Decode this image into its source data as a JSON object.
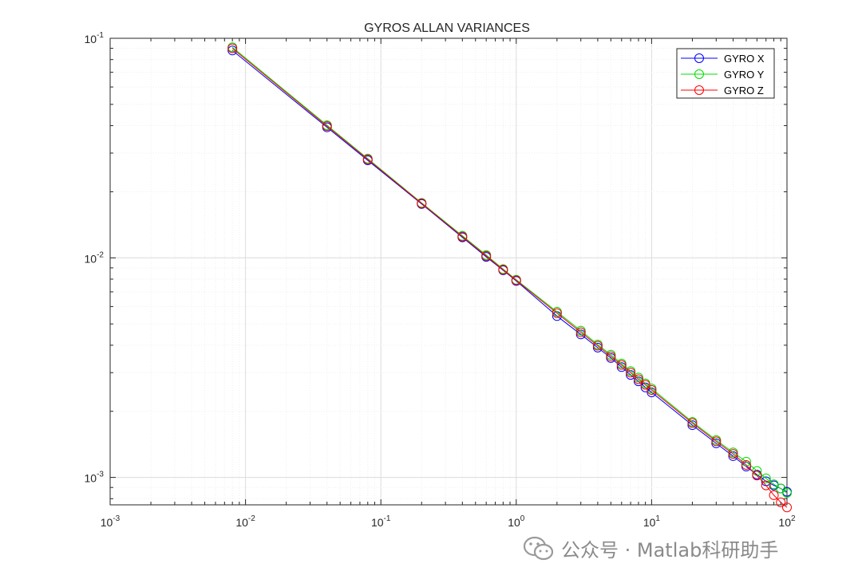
{
  "chart_data": {
    "type": "line",
    "title": "GYROS ALLAN VARIANCES",
    "x_scale": "log",
    "y_scale": "log",
    "xlim": [
      0.001,
      100
    ],
    "ylim": [
      0.00075,
      0.1
    ],
    "grid": true,
    "minor_grid": true,
    "legend_position": "top-right",
    "x_tick_labels": [
      {
        "value": 0.001,
        "base": "10",
        "exp": "-3"
      },
      {
        "value": 0.01,
        "base": "10",
        "exp": "-2"
      },
      {
        "value": 0.1,
        "base": "10",
        "exp": "-1"
      },
      {
        "value": 1,
        "base": "10",
        "exp": "0"
      },
      {
        "value": 10,
        "base": "10",
        "exp": "1"
      },
      {
        "value": 100,
        "base": "10",
        "exp": "2"
      }
    ],
    "y_tick_labels": [
      {
        "value": 0.001,
        "base": "10",
        "exp": "-3"
      },
      {
        "value": 0.01,
        "base": "10",
        "exp": "-2"
      },
      {
        "value": 0.1,
        "base": "10",
        "exp": "-1"
      }
    ],
    "x": [
      0.008,
      0.04,
      0.08,
      0.2,
      0.4,
      0.6,
      0.8,
      1,
      2,
      3,
      4,
      5,
      6,
      7,
      8,
      9,
      10,
      20,
      30,
      40,
      50,
      60,
      70,
      80,
      90,
      100
    ],
    "series": [
      {
        "name": "GYRO X",
        "color": "#0000ff",
        "values": [
          0.088,
          0.0393,
          0.0278,
          0.0176,
          0.0124,
          0.0101,
          0.00878,
          0.00785,
          0.00543,
          0.00448,
          0.0039,
          0.0035,
          0.00318,
          0.00293,
          0.00274,
          0.00257,
          0.00244,
          0.00173,
          0.00143,
          0.00125,
          0.00112,
          0.00103,
          0.00096,
          0.00092,
          0.00089,
          0.00086
        ]
      },
      {
        "name": "GYRO Y",
        "color": "#00dd00",
        "values": [
          0.091,
          0.0402,
          0.0283,
          0.0178,
          0.0126,
          0.0103,
          0.00889,
          0.00795,
          0.00568,
          0.00466,
          0.00403,
          0.00362,
          0.0033,
          0.00305,
          0.00285,
          0.00268,
          0.00254,
          0.00179,
          0.00148,
          0.0013,
          0.00118,
          0.00107,
          0.00099,
          0.00093,
          0.00089,
          0.00085
        ]
      },
      {
        "name": "GYRO Z",
        "color": "#ff0000",
        "values": [
          0.09,
          0.0398,
          0.0281,
          0.0177,
          0.0125,
          0.0102,
          0.00883,
          0.0079,
          0.0056,
          0.00458,
          0.00398,
          0.00356,
          0.00325,
          0.003,
          0.0028,
          0.00264,
          0.0025,
          0.00177,
          0.00146,
          0.00128,
          0.00114,
          0.00102,
          0.00092,
          0.00083,
          0.00077,
          0.00073
        ]
      }
    ]
  },
  "watermark": {
    "text": "公众号 · Matlab科研助手",
    "icon": "wechat-icon"
  }
}
